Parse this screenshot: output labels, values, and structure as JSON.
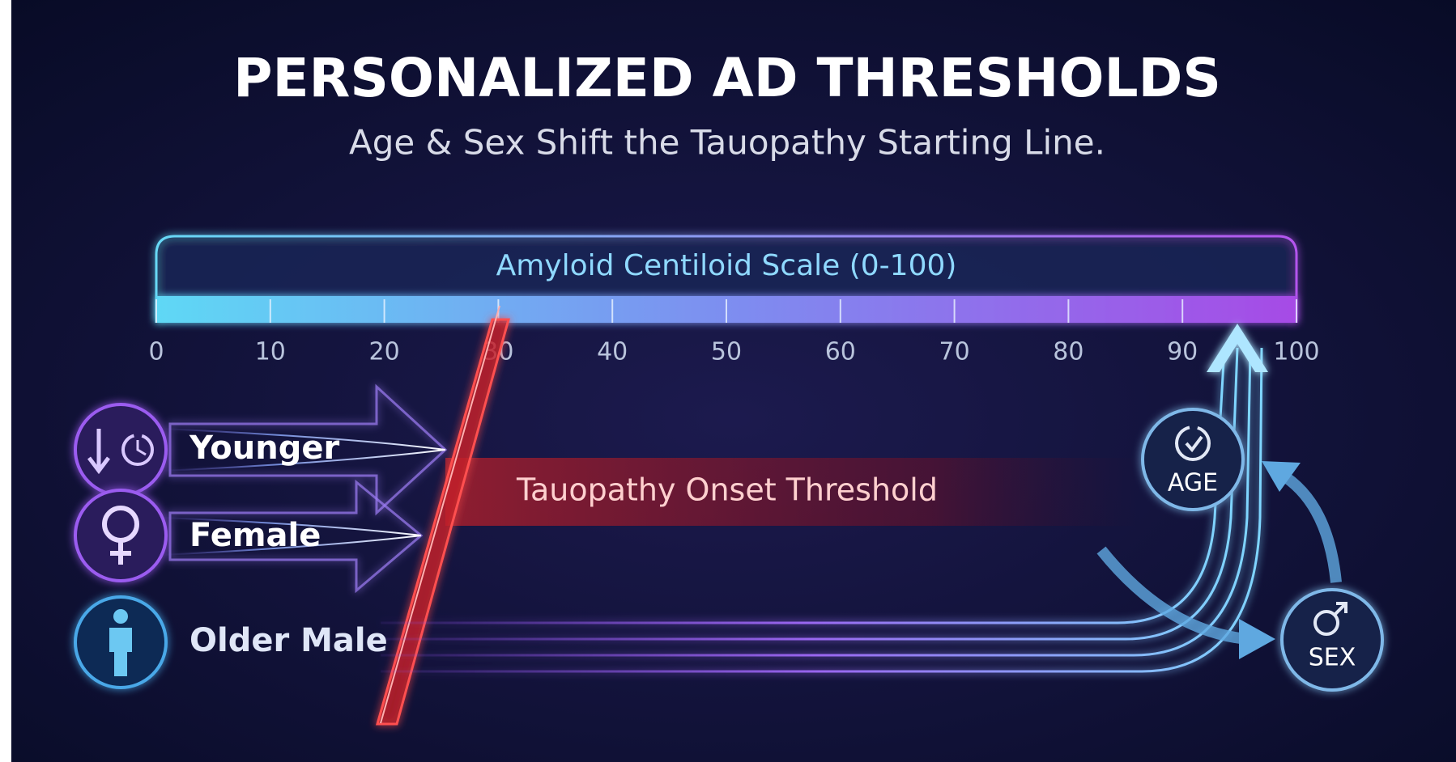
{
  "header": {
    "title": "PERSONALIZED AD THRESHOLDS",
    "subtitle": "Age & Sex Shift the Tauopathy Starting Line."
  },
  "scale": {
    "label": "Amyloid Centiloid Scale (0-100)",
    "range": [
      0,
      100
    ],
    "ticks": [
      0,
      10,
      20,
      30,
      40,
      50,
      60,
      70,
      80,
      90,
      100
    ]
  },
  "groups": [
    {
      "label": "Younger"
    },
    {
      "label": "Female"
    },
    {
      "label": "Older Male"
    }
  ],
  "threshold": {
    "label": "Tauopathy Onset Threshold"
  },
  "factors": [
    {
      "label": "AGE"
    },
    {
      "label": "SEX"
    }
  ]
}
